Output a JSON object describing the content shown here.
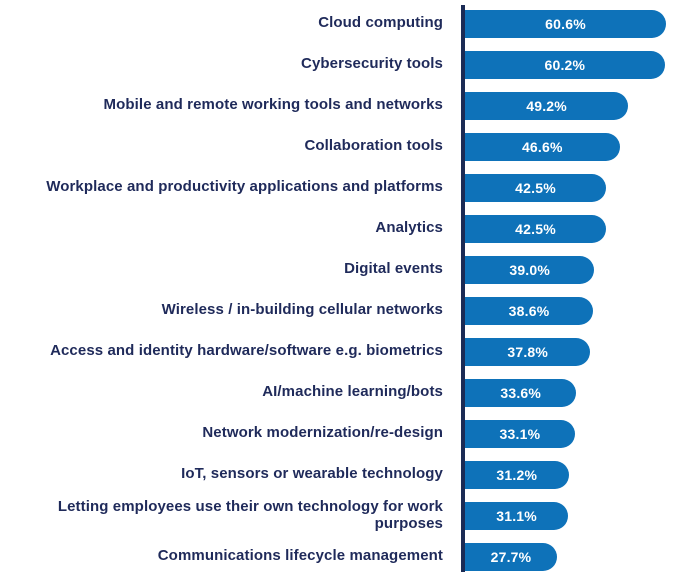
{
  "chart_data": {
    "type": "bar",
    "orientation": "horizontal",
    "title": "",
    "xlabel": "",
    "ylabel": "",
    "xlim": [
      0,
      63
    ],
    "grid": false,
    "legend": false,
    "bar_color": "#0e72b9",
    "label_color": "#1f2a5a",
    "axis_color": "#1b2b55",
    "value_text_color": "#ffffff",
    "categories": [
      "Cloud computing",
      "Cybersecurity tools",
      "Mobile and remote working tools and networks",
      "Collaboration tools",
      "Workplace and productivity applications and platforms",
      "Analytics",
      "Digital events",
      "Wireless / in-building cellular networks",
      "Access and identity hardware/software e.g. biometrics",
      "AI/machine learning/bots",
      "Network modernization/re-design",
      "IoT, sensors or wearable technology",
      "Letting employees use their own technology for work purposes",
      "Communications lifecycle management"
    ],
    "values": [
      60.6,
      60.2,
      49.2,
      46.6,
      42.5,
      42.5,
      39.0,
      38.6,
      37.8,
      33.6,
      33.1,
      31.2,
      31.1,
      27.7
    ],
    "value_labels": [
      "60.6%",
      "60.2%",
      "49.2%",
      "46.6%",
      "42.5%",
      "42.5%",
      "39.0%",
      "38.6%",
      "37.8%",
      "33.6%",
      "33.1%",
      "31.2%",
      "31.1%",
      "27.7%"
    ]
  }
}
